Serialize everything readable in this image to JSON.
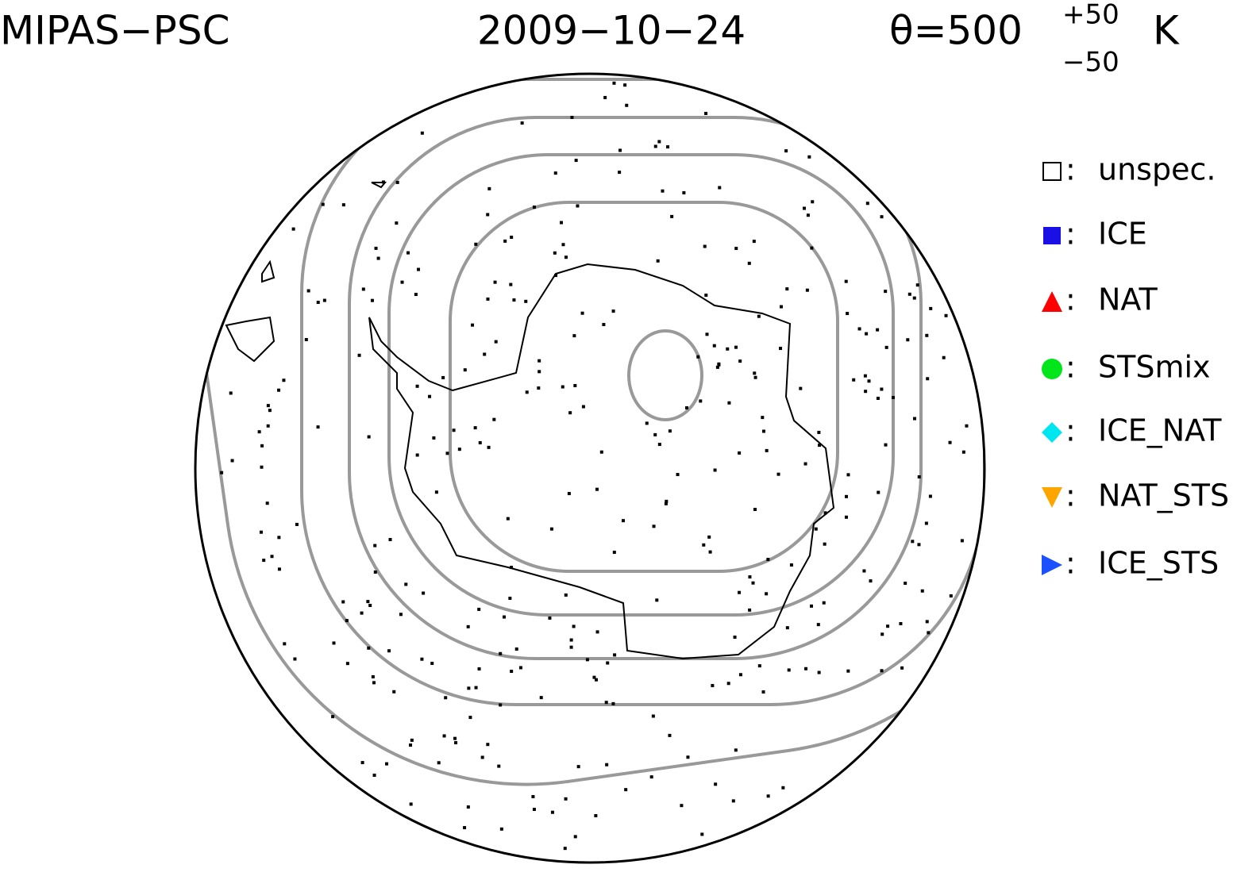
{
  "header": {
    "instrument": "MIPAS−PSC",
    "date": "2009−10−24",
    "level": "θ=500",
    "level_upper": "+50",
    "level_lower": "−50",
    "level_unit": "K"
  },
  "legend": {
    "separator": ":",
    "items": [
      {
        "name": "unspec.",
        "color": "#ffffff",
        "marker": "square-open"
      },
      {
        "name": "ICE",
        "color": "#1a10e6",
        "marker": "square"
      },
      {
        "name": "NAT",
        "color": "#ff0000",
        "marker": "triangle-up"
      },
      {
        "name": "STSmix",
        "color": "#00e61a",
        "marker": "circle"
      },
      {
        "name": "ICE_NAT",
        "color": "#00e6f0",
        "marker": "diamond"
      },
      {
        "name": "NAT_STS",
        "color": "#ffa500",
        "marker": "triangle-down"
      },
      {
        "name": "ICE_STS",
        "color": "#1a50ff",
        "marker": "triangle-right"
      }
    ]
  }
}
